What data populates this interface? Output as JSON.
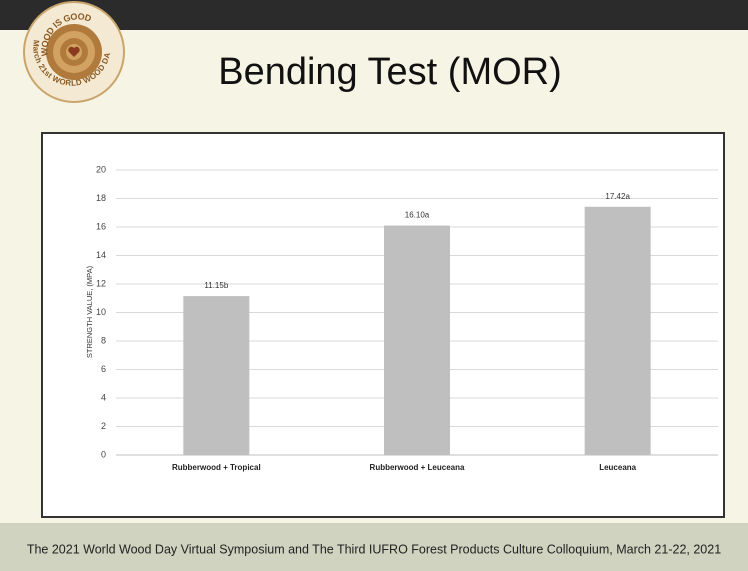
{
  "slide": {
    "title": "Bending Test (MOR)",
    "logo_top": "WOOD IS GOOD",
    "logo_bottom": "March 21st WORLD WOOD DAY",
    "footer": "The 2021 World Wood Day Virtual Symposium and The Third IUFRO Forest Products Culture Colloquium, March 21-22, 2021"
  },
  "chart_data": {
    "type": "bar",
    "y_label": "STRENGTH VALUE, (MPA)",
    "categories": [
      "Rubberwood + Tropical",
      "Rubberwood + Leuceana",
      "Leuceana"
    ],
    "values": [
      11.15,
      16.1,
      17.42
    ],
    "value_labels": [
      "11.15b",
      "16.10a",
      "17.42a"
    ],
    "color": "#bfbfbf",
    "ylim": [
      0,
      20
    ],
    "yticks": [
      0,
      2,
      4,
      6,
      8,
      10,
      12,
      14,
      16,
      18,
      20
    ],
    "grid": true
  }
}
